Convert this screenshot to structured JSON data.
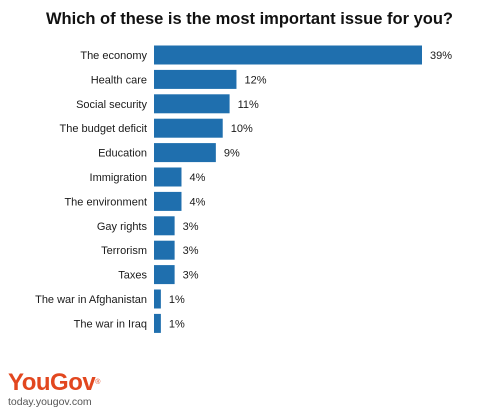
{
  "chart_data": {
    "type": "bar",
    "orientation": "horizontal",
    "title": "Which of these is the most important issue for you?",
    "categories": [
      "The economy",
      "Health care",
      "Social security",
      "The budget deficit",
      "Education",
      "Immigration",
      "The environment",
      "Gay rights",
      "Terrorism",
      "Taxes",
      "The war in Afghanistan",
      "The war in Iraq"
    ],
    "values": [
      39,
      12,
      11,
      10,
      9,
      4,
      4,
      3,
      3,
      3,
      1,
      1
    ],
    "value_labels": [
      "39%",
      "12%",
      "11%",
      "10%",
      "9%",
      "4%",
      "4%",
      "3%",
      "3%",
      "3%",
      "1%",
      "1%"
    ],
    "xlim": [
      0,
      39
    ],
    "bar_color": "#1f6fae",
    "grid": false,
    "legend": "none"
  },
  "brand": {
    "logo_part1": "You",
    "logo_part2": "Gov",
    "logo_mark": "®",
    "url": "today.yougov.com",
    "color": "#e2471f"
  }
}
